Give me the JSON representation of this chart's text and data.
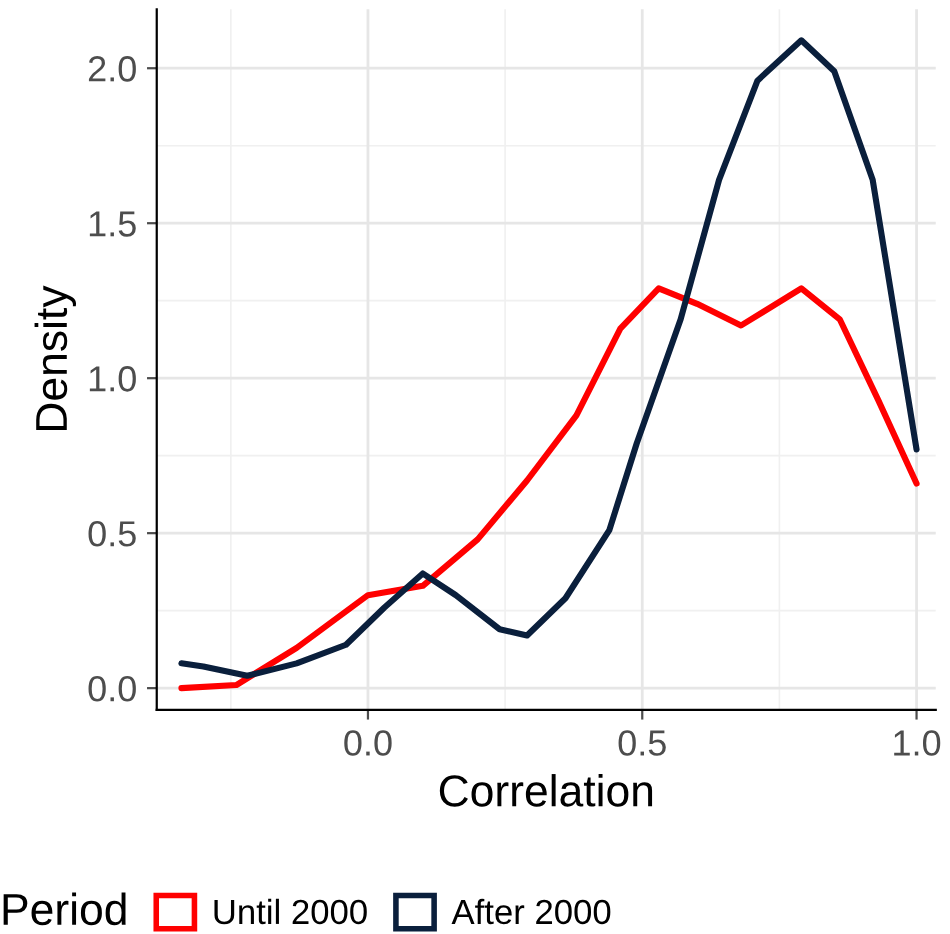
{
  "chart_data": {
    "type": "line",
    "xlabel": "Correlation",
    "ylabel": "Density",
    "legend_title": "Period",
    "legend": "bottom",
    "grid": true,
    "xlim": [
      -0.385,
      1.035
    ],
    "ylim": [
      -0.07,
      2.19
    ],
    "xticks": [
      {
        "value": 0,
        "label": "0.0"
      },
      0.5,
      {
        "value": 1,
        "label": "1.0"
      }
    ],
    "yticks": [
      {
        "value": 0,
        "label": "0.0"
      },
      0.5,
      {
        "value": 1,
        "label": "1.0"
      },
      1.5,
      {
        "value": 2,
        "label": "2.0"
      }
    ],
    "series": [
      {
        "name": "Until 2000",
        "color": "#ff0000",
        "x": [
          -0.34,
          -0.24,
          -0.13,
          0.0,
          0.1,
          0.2,
          0.29,
          0.38,
          0.46,
          0.53,
          0.6,
          0.68,
          0.79,
          0.86,
          0.93,
          1.0
        ],
        "values": [
          0.0,
          0.01,
          0.13,
          0.3,
          0.33,
          0.48,
          0.67,
          0.88,
          1.16,
          1.29,
          1.24,
          1.17,
          1.29,
          1.19,
          0.93,
          0.66
        ]
      },
      {
        "name": "After 2000",
        "color": "#0a1f3c",
        "x": [
          -0.34,
          -0.3,
          -0.22,
          -0.13,
          -0.04,
          0.03,
          0.1,
          0.16,
          0.24,
          0.29,
          0.36,
          0.44,
          0.49,
          0.57,
          0.64,
          0.71,
          0.79,
          0.85,
          0.92,
          1.0
        ],
        "values": [
          0.08,
          0.07,
          0.04,
          0.08,
          0.14,
          0.26,
          0.37,
          0.3,
          0.19,
          0.17,
          0.29,
          0.51,
          0.79,
          1.19,
          1.64,
          1.96,
          2.09,
          1.99,
          1.64,
          0.77
        ]
      }
    ]
  }
}
